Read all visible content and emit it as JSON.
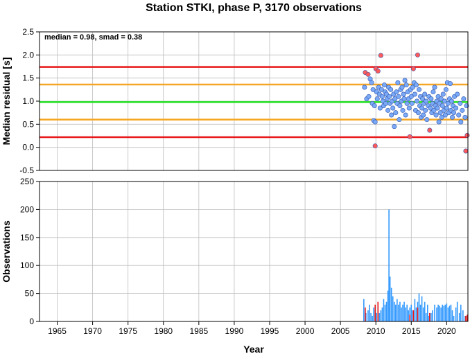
{
  "chart_data": [
    {
      "type": "scatter",
      "title": "Station STKI, phase P, 3170 observations",
      "xlabel": "",
      "ylabel": "Median residual [s]",
      "annotation": "median = 0.98, smad = 0.38",
      "xlim": [
        1962.5,
        2023
      ],
      "ylim": [
        -0.5,
        2.5
      ],
      "yticks": [
        "-0.5",
        "0.0",
        "0.5",
        "1.0",
        "1.5",
        "2.0",
        "2.5"
      ],
      "grid": true,
      "reference_lines": [
        {
          "y": 1.74,
          "color": "#e8191a"
        },
        {
          "y": 1.36,
          "color": "#f5a623"
        },
        {
          "y": 0.98,
          "color": "#22e022"
        },
        {
          "y": 0.6,
          "color": "#f5a623"
        },
        {
          "y": 0.22,
          "color": "#e8191a"
        }
      ],
      "series": [
        {
          "color": "#ff5a5a",
          "points": [
            [
              2008.5,
              1.62
            ],
            [
              2008.9,
              1.58
            ],
            [
              2010.0,
              1.7
            ],
            [
              2010.3,
              1.65
            ],
            [
              2010.7,
              1.99
            ],
            [
              2009.9,
              0.03
            ],
            [
              2015.3,
              1.7
            ],
            [
              2015.9,
              2.0
            ],
            [
              2014.8,
              0.23
            ],
            [
              2017.6,
              0.37
            ],
            [
              2022.7,
              -0.08
            ],
            [
              2022.9,
              0.26
            ]
          ]
        },
        {
          "color": "#7aaaf7",
          "points": [
            [
              2008.4,
              1.3
            ],
            [
              2008.7,
              1.05
            ],
            [
              2009.0,
              1.1
            ],
            [
              2009.2,
              1.48
            ],
            [
              2009.4,
              1.4
            ],
            [
              2009.5,
              0.95
            ],
            [
              2009.6,
              1.25
            ],
            [
              2009.7,
              0.58
            ],
            [
              2009.8,
              0.9
            ],
            [
              2009.9,
              0.55
            ],
            [
              2010.1,
              1.2
            ],
            [
              2010.2,
              1.05
            ],
            [
              2010.4,
              1.3
            ],
            [
              2010.5,
              1.15
            ],
            [
              2010.6,
              0.85
            ],
            [
              2010.8,
              1.25
            ],
            [
              2010.9,
              1.1
            ],
            [
              2011.0,
              1.0
            ],
            [
              2011.1,
              0.9
            ],
            [
              2011.2,
              1.35
            ],
            [
              2011.3,
              1.2
            ],
            [
              2011.4,
              0.95
            ],
            [
              2011.5,
              1.15
            ],
            [
              2011.6,
              1.05
            ],
            [
              2011.7,
              0.8
            ],
            [
              2011.8,
              1.3
            ],
            [
              2011.9,
              1.1
            ],
            [
              2012.0,
              0.95
            ],
            [
              2012.1,
              1.25
            ],
            [
              2012.2,
              0.7
            ],
            [
              2012.3,
              1.0
            ],
            [
              2012.4,
              0.85
            ],
            [
              2012.5,
              1.15
            ],
            [
              2012.6,
              0.45
            ],
            [
              2012.7,
              1.05
            ],
            [
              2012.8,
              0.75
            ],
            [
              2012.9,
              1.2
            ],
            [
              2013.0,
              0.95
            ],
            [
              2013.1,
              1.4
            ],
            [
              2013.2,
              1.1
            ],
            [
              2013.3,
              0.6
            ],
            [
              2013.4,
              0.9
            ],
            [
              2013.5,
              1.25
            ],
            [
              2013.6,
              1.0
            ],
            [
              2013.7,
              1.3
            ],
            [
              2013.8,
              0.8
            ],
            [
              2013.9,
              1.15
            ],
            [
              2014.0,
              1.05
            ],
            [
              2014.1,
              1.45
            ],
            [
              2014.2,
              0.7
            ],
            [
              2014.3,
              1.35
            ],
            [
              2014.4,
              0.95
            ],
            [
              2014.5,
              1.2
            ],
            [
              2014.6,
              1.05
            ],
            [
              2014.7,
              0.85
            ],
            [
              2014.9,
              1.25
            ],
            [
              2015.0,
              1.1
            ],
            [
              2015.1,
              0.95
            ],
            [
              2015.2,
              1.3
            ],
            [
              2015.4,
              1.4
            ],
            [
              2015.5,
              1.15
            ],
            [
              2015.6,
              0.8
            ],
            [
              2015.7,
              1.35
            ],
            [
              2015.8,
              1.0
            ],
            [
              2016.0,
              0.75
            ],
            [
              2016.1,
              1.25
            ],
            [
              2016.2,
              0.9
            ],
            [
              2016.3,
              1.1
            ],
            [
              2016.4,
              0.65
            ],
            [
              2016.5,
              0.85
            ],
            [
              2016.6,
              1.05
            ],
            [
              2016.7,
              0.7
            ],
            [
              2016.8,
              0.95
            ],
            [
              2016.9,
              1.15
            ],
            [
              2017.0,
              0.8
            ],
            [
              2017.1,
              1.0
            ],
            [
              2017.2,
              0.6
            ],
            [
              2017.4,
              0.9
            ],
            [
              2017.5,
              1.1
            ],
            [
              2017.7,
              0.85
            ],
            [
              2017.8,
              1.05
            ],
            [
              2017.9,
              0.75
            ],
            [
              2018.0,
              0.95
            ],
            [
              2018.1,
              1.2
            ],
            [
              2018.2,
              0.8
            ],
            [
              2018.3,
              1.3
            ],
            [
              2018.4,
              0.9
            ],
            [
              2018.5,
              0.7
            ],
            [
              2018.6,
              1.0
            ],
            [
              2018.7,
              0.85
            ],
            [
              2018.8,
              1.1
            ],
            [
              2018.9,
              0.55
            ],
            [
              2019.0,
              0.95
            ],
            [
              2019.1,
              0.75
            ],
            [
              2019.2,
              1.05
            ],
            [
              2019.3,
              0.65
            ],
            [
              2019.4,
              0.9
            ],
            [
              2019.5,
              1.15
            ],
            [
              2019.6,
              0.8
            ],
            [
              2019.7,
              1.0
            ],
            [
              2019.8,
              0.7
            ],
            [
              2019.9,
              1.25
            ],
            [
              2020.0,
              0.85
            ],
            [
              2020.1,
              1.4
            ],
            [
              2020.2,
              0.95
            ],
            [
              2020.3,
              0.75
            ],
            [
              2020.4,
              1.05
            ],
            [
              2020.5,
              1.38
            ],
            [
              2020.6,
              0.8
            ],
            [
              2020.7,
              1.0
            ],
            [
              2020.8,
              0.65
            ],
            [
              2020.9,
              0.9
            ],
            [
              2021.0,
              0.75
            ],
            [
              2021.1,
              1.1
            ],
            [
              2021.3,
              0.85
            ],
            [
              2021.5,
              1.15
            ],
            [
              2021.7,
              0.7
            ],
            [
              2021.9,
              0.95
            ],
            [
              2022.0,
              0.55
            ],
            [
              2022.2,
              0.8
            ],
            [
              2022.4,
              1.05
            ],
            [
              2022.6,
              0.65
            ],
            [
              2022.8,
              0.9
            ]
          ]
        }
      ]
    },
    {
      "type": "bar",
      "xlabel": "Year",
      "ylabel": "Observations",
      "xlim": [
        1962.5,
        2023
      ],
      "ylim": [
        0,
        250
      ],
      "yticks": [
        "0",
        "50",
        "100",
        "150",
        "200",
        "250"
      ],
      "xticks": [
        "1965",
        "1970",
        "1975",
        "1980",
        "1985",
        "1990",
        "1995",
        "2000",
        "2005",
        "2010",
        "2015",
        "2020"
      ],
      "grid": true,
      "series": [
        {
          "color": "#e8191a",
          "bars": [
            [
              2008.5,
              25
            ],
            [
              2009.9,
              30
            ],
            [
              2010.3,
              35
            ],
            [
              2014.8,
              12
            ],
            [
              2015.3,
              20
            ],
            [
              2015.9,
              25
            ],
            [
              2017.6,
              15
            ],
            [
              2022.7,
              10
            ],
            [
              2022.9,
              12
            ]
          ]
        },
        {
          "color": "#3399ff",
          "bars": [
            [
              2008.3,
              40
            ],
            [
              2008.6,
              15
            ],
            [
              2008.9,
              20
            ],
            [
              2009.1,
              30
            ],
            [
              2009.3,
              15
            ],
            [
              2009.5,
              10
            ],
            [
              2009.7,
              25
            ],
            [
              2009.9,
              20
            ],
            [
              2010.1,
              15
            ],
            [
              2010.3,
              30
            ],
            [
              2010.5,
              15
            ],
            [
              2010.7,
              20
            ],
            [
              2010.9,
              25
            ],
            [
              2011.1,
              40
            ],
            [
              2011.3,
              30
            ],
            [
              2011.5,
              35
            ],
            [
              2011.7,
              55
            ],
            [
              2011.85,
              200
            ],
            [
              2012.0,
              80
            ],
            [
              2012.2,
              60
            ],
            [
              2012.4,
              45
            ],
            [
              2012.6,
              35
            ],
            [
              2012.8,
              30
            ],
            [
              2013.0,
              40
            ],
            [
              2013.2,
              30
            ],
            [
              2013.4,
              35
            ],
            [
              2013.6,
              25
            ],
            [
              2013.8,
              30
            ],
            [
              2014.0,
              35
            ],
            [
              2014.2,
              25
            ],
            [
              2014.4,
              30
            ],
            [
              2014.6,
              20
            ],
            [
              2014.8,
              25
            ],
            [
              2015.0,
              30
            ],
            [
              2015.2,
              20
            ],
            [
              2015.5,
              40
            ],
            [
              2015.7,
              25
            ],
            [
              2015.9,
              35
            ],
            [
              2016.1,
              50
            ],
            [
              2016.3,
              30
            ],
            [
              2016.5,
              45
            ],
            [
              2016.7,
              25
            ],
            [
              2016.9,
              35
            ],
            [
              2017.1,
              15
            ],
            [
              2017.3,
              30
            ],
            [
              2017.5,
              10
            ],
            [
              2017.8,
              15
            ],
            [
              2018.0,
              20
            ],
            [
              2018.3,
              30
            ],
            [
              2018.6,
              25
            ],
            [
              2018.8,
              30
            ],
            [
              2019.0,
              28
            ],
            [
              2019.2,
              25
            ],
            [
              2019.4,
              30
            ],
            [
              2019.6,
              28
            ],
            [
              2019.8,
              30
            ],
            [
              2020.0,
              32
            ],
            [
              2020.2,
              25
            ],
            [
              2020.4,
              28
            ],
            [
              2020.6,
              30
            ],
            [
              2020.8,
              20
            ],
            [
              2021.0,
              10
            ],
            [
              2021.3,
              25
            ],
            [
              2021.5,
              35
            ],
            [
              2021.8,
              15
            ],
            [
              2022.0,
              30
            ],
            [
              2022.3,
              20
            ],
            [
              2022.6,
              10
            ]
          ]
        }
      ]
    }
  ]
}
